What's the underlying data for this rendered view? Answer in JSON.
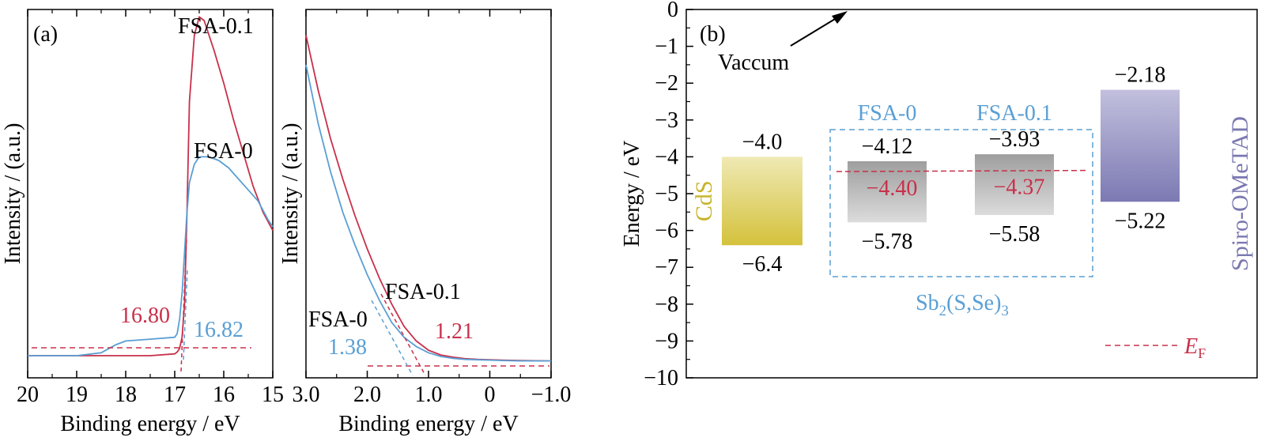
{
  "colors": {
    "fsa0": "#5a9fd4",
    "fsa01": "#c8304a",
    "cds": "#c8b428",
    "spiro": "#7a78b0",
    "sbs": "#5a9fd4",
    "axis": "#000000",
    "ef": "#c8304a"
  },
  "chart_data": [
    {
      "type": "line",
      "panel_label": "(a)",
      "xlabel": "Binding energy / eV",
      "ylabel": "Intensity / (a.u.)",
      "xlim": [
        20,
        15
      ],
      "xticks": [
        "20",
        "19",
        "18",
        "17",
        "16",
        "15"
      ],
      "series": [
        {
          "name": "FSA-0.1",
          "x": [
            20,
            19,
            18.5,
            18,
            17.5,
            17,
            16.95,
            16.9,
            16.85,
            16.8,
            16.75,
            16.7,
            16.6,
            16.5,
            16.4,
            16.3,
            16.2,
            16,
            15.8,
            15.6,
            15.4,
            15.2,
            15
          ],
          "y": [
            0.06,
            0.06,
            0.06,
            0.06,
            0.06,
            0.065,
            0.07,
            0.08,
            0.11,
            0.2,
            0.45,
            0.75,
            0.93,
            0.98,
            0.97,
            0.93,
            0.89,
            0.8,
            0.7,
            0.61,
            0.52,
            0.45,
            0.4
          ]
        },
        {
          "name": "FSA-0",
          "x": [
            20,
            19,
            18.5,
            18.2,
            18,
            17.5,
            17,
            16.95,
            16.9,
            16.85,
            16.8,
            16.75,
            16.7,
            16.6,
            16.5,
            16.3,
            16.1,
            15.9,
            15.7,
            15.5,
            15.3,
            15.1,
            15
          ],
          "y": [
            0.06,
            0.06,
            0.068,
            0.09,
            0.1,
            0.105,
            0.11,
            0.12,
            0.16,
            0.23,
            0.34,
            0.45,
            0.53,
            0.58,
            0.6,
            0.6,
            0.59,
            0.57,
            0.54,
            0.51,
            0.48,
            0.43,
            0.41
          ]
        }
      ],
      "annotations": [
        {
          "text": "FSA-0.1",
          "series": "FSA-0.1"
        },
        {
          "text": "FSA-0",
          "series": "FSA-0"
        },
        {
          "text": "16.80",
          "series": "FSA-0.1",
          "value": 16.8
        },
        {
          "text": "16.82",
          "series": "FSA-0",
          "value": 16.82
        }
      ]
    },
    {
      "type": "line",
      "xlabel": "Binding energy / eV",
      "ylabel": "Intensity / (a.u.)",
      "xlim": [
        3.0,
        -1.0
      ],
      "xticks": [
        "3.0",
        "2.0",
        "1.0",
        "0",
        "−1.0"
      ],
      "series": [
        {
          "name": "FSA-0.1",
          "x": [
            3.0,
            2.8,
            2.6,
            2.4,
            2.2,
            2.0,
            1.8,
            1.6,
            1.4,
            1.2,
            1.0,
            0.8,
            0.6,
            0.4,
            0.2,
            0,
            -0.2,
            -0.5,
            -1.0
          ],
          "y": [
            0.93,
            0.78,
            0.65,
            0.54,
            0.44,
            0.35,
            0.27,
            0.2,
            0.14,
            0.1,
            0.075,
            0.062,
            0.056,
            0.052,
            0.05,
            0.049,
            0.048,
            0.047,
            0.046
          ]
        },
        {
          "name": "FSA-0",
          "x": [
            3.0,
            2.8,
            2.6,
            2.4,
            2.2,
            2.0,
            1.8,
            1.6,
            1.4,
            1.2,
            1.0,
            0.8,
            0.6,
            0.4,
            0.2,
            0,
            -0.2,
            -0.5,
            -1.0
          ],
          "y": [
            0.85,
            0.69,
            0.56,
            0.45,
            0.36,
            0.28,
            0.21,
            0.15,
            0.11,
            0.085,
            0.068,
            0.058,
            0.053,
            0.05,
            0.049,
            0.048,
            0.047,
            0.046,
            0.046
          ]
        }
      ],
      "annotations": [
        {
          "text": "FSA-0.1",
          "series": "FSA-0.1"
        },
        {
          "text": "FSA-0",
          "series": "FSA-0"
        },
        {
          "text": "1.38",
          "series": "FSA-0",
          "value": 1.38
        },
        {
          "text": "1.21",
          "series": "FSA-0.1",
          "value": 1.21
        }
      ]
    },
    {
      "type": "bar",
      "panel_label": "(b)",
      "ylabel": "Energy / eV",
      "ylim": [
        -10,
        0
      ],
      "yticks": [
        "0",
        "−1",
        "−2",
        "−3",
        "−4",
        "−5",
        "−6",
        "−7",
        "−8",
        "−9",
        "−10"
      ],
      "vacuum_label": "Vaccum",
      "group_label_main": "Sb",
      "group_label_sub": "2",
      "group_label_rest": "(S,Se)",
      "group_label_sub2": "3",
      "legend_label_main": "E",
      "legend_label_sub": "F",
      "bars": [
        {
          "name": "CdS",
          "top": -4.0,
          "bottom": -6.4,
          "top_label": "−4.0",
          "bottom_label": "−6.4"
        },
        {
          "name": "FSA-0",
          "top": -4.12,
          "bottom": -5.78,
          "top_label": "−4.12",
          "bottom_label": "−5.78",
          "fermi": -4.4,
          "fermi_label": "−4.40"
        },
        {
          "name": "FSA-0.1",
          "top": -3.93,
          "bottom": -5.58,
          "top_label": "−3.93",
          "bottom_label": "−5.58",
          "fermi": -4.37,
          "fermi_label": "−4.37"
        },
        {
          "name": "Spiro-OMeTAD",
          "top": -2.18,
          "bottom": -5.22,
          "top_label": "−2.18",
          "bottom_label": "−5.22"
        }
      ]
    }
  ]
}
